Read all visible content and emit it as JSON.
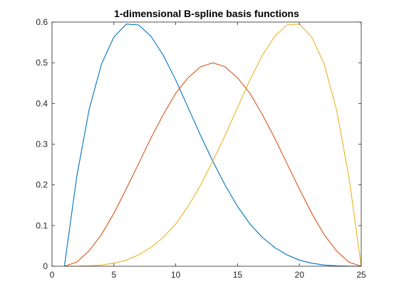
{
  "chart_data": {
    "type": "line",
    "title": "1-dimensional B-spline basis functions",
    "xlabel": "",
    "ylabel": "",
    "xlim": [
      0,
      25
    ],
    "ylim": [
      0,
      0.6
    ],
    "xticks": [
      0,
      5,
      10,
      15,
      20,
      25
    ],
    "yticks": [
      0,
      0.1,
      0.2,
      0.3,
      0.4,
      0.5,
      0.6
    ],
    "xtick_labels": [
      "0",
      "5",
      "10",
      "15",
      "20",
      "25"
    ],
    "ytick_labels": [
      "0",
      "0.1",
      "0.2",
      "0.3",
      "0.4",
      "0.5",
      "0.6"
    ],
    "grid": false,
    "legend": "none",
    "x": [
      1,
      2,
      3,
      4,
      5,
      6,
      7,
      8,
      9,
      10,
      11,
      12,
      13,
      14,
      15,
      16,
      17,
      18,
      19,
      20,
      21,
      22,
      23,
      24,
      25
    ],
    "series": [
      {
        "color": "#0072BD",
        "values": [
          0,
          0.22,
          0.385,
          0.497,
          0.563,
          0.595,
          0.593,
          0.565,
          0.518,
          0.458,
          0.39,
          0.322,
          0.258,
          0.199,
          0.147,
          0.104,
          0.071,
          0.046,
          0.028,
          0.015,
          0.0075,
          0.003,
          0.001,
          0.0002,
          0
        ]
      },
      {
        "color": "#D95319",
        "values": [
          0,
          0.01,
          0.038,
          0.078,
          0.13,
          0.19,
          0.252,
          0.315,
          0.373,
          0.425,
          0.463,
          0.49,
          0.5,
          0.49,
          0.463,
          0.425,
          0.373,
          0.315,
          0.252,
          0.19,
          0.13,
          0.078,
          0.038,
          0.01,
          0
        ]
      },
      {
        "color": "#EDB120",
        "values": [
          0,
          0.0002,
          0.001,
          0.003,
          0.0075,
          0.015,
          0.028,
          0.046,
          0.071,
          0.104,
          0.147,
          0.199,
          0.258,
          0.322,
          0.39,
          0.458,
          0.518,
          0.565,
          0.593,
          0.595,
          0.563,
          0.497,
          0.385,
          0.22,
          0
        ]
      }
    ]
  }
}
